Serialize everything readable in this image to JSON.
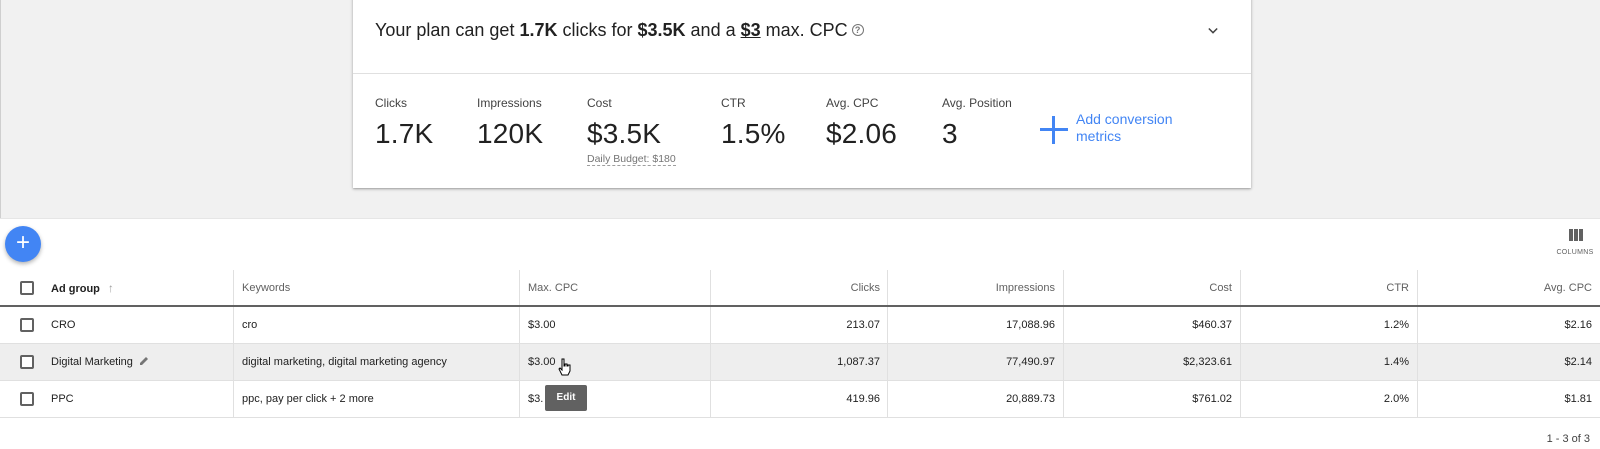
{
  "plan": {
    "title_prefix": "Your plan can get ",
    "clicks": "1.7K",
    "title_mid1": " clicks for ",
    "cost": "$3.5K",
    "title_mid2": " and a ",
    "max_cpc": "$3",
    "title_suffix": " max. CPC",
    "help_glyph": "?"
  },
  "metrics": [
    {
      "label": "Clicks",
      "value": "1.7K"
    },
    {
      "label": "Impressions",
      "value": "120K"
    },
    {
      "label": "Cost",
      "value": "$3.5K"
    },
    {
      "label": "CTR",
      "value": "1.5%"
    },
    {
      "label": "Avg. CPC",
      "value": "$2.06"
    },
    {
      "label": "Avg. Position",
      "value": "3"
    }
  ],
  "daily_budget": "Daily Budget: $180",
  "add_conversion": {
    "line1": "Add conversion",
    "line2": "metrics"
  },
  "toolbar": {
    "fab_glyph": "+",
    "columns_label": "COLUMNS"
  },
  "table": {
    "headers": {
      "ad_group": "Ad group",
      "sort_glyph": "↑",
      "keywords": "Keywords",
      "max_cpc": "Max. CPC",
      "clicks": "Clicks",
      "impressions": "Impressions",
      "cost": "Cost",
      "ctr": "CTR",
      "avg_cpc": "Avg. CPC"
    },
    "rows": [
      {
        "ad_group": "CRO",
        "keywords": "cro",
        "max_cpc": "$3.00",
        "clicks": "213.07",
        "impressions": "17,088.96",
        "cost": "$460.37",
        "ctr": "1.2%",
        "avg_cpc": "$2.16"
      },
      {
        "ad_group": "Digital Marketing",
        "keywords": "digital marketing, digital marketing agency",
        "max_cpc": "$3.00",
        "clicks": "1,087.37",
        "impressions": "77,490.97",
        "cost": "$2,323.61",
        "ctr": "1.4%",
        "avg_cpc": "$2.14"
      },
      {
        "ad_group": "PPC",
        "keywords": "ppc, pay per click + 2 more",
        "max_cpc": "$3.",
        "clicks": "419.96",
        "impressions": "20,889.73",
        "cost": "$761.02",
        "ctr": "2.0%",
        "avg_cpc": "$1.81"
      }
    ]
  },
  "tooltip": "Edit",
  "pagination": "1 - 3 of 3",
  "colors": {
    "accent": "#4285f4",
    "row_hover": "#eeeeee",
    "tooltip_bg": "#616161"
  }
}
